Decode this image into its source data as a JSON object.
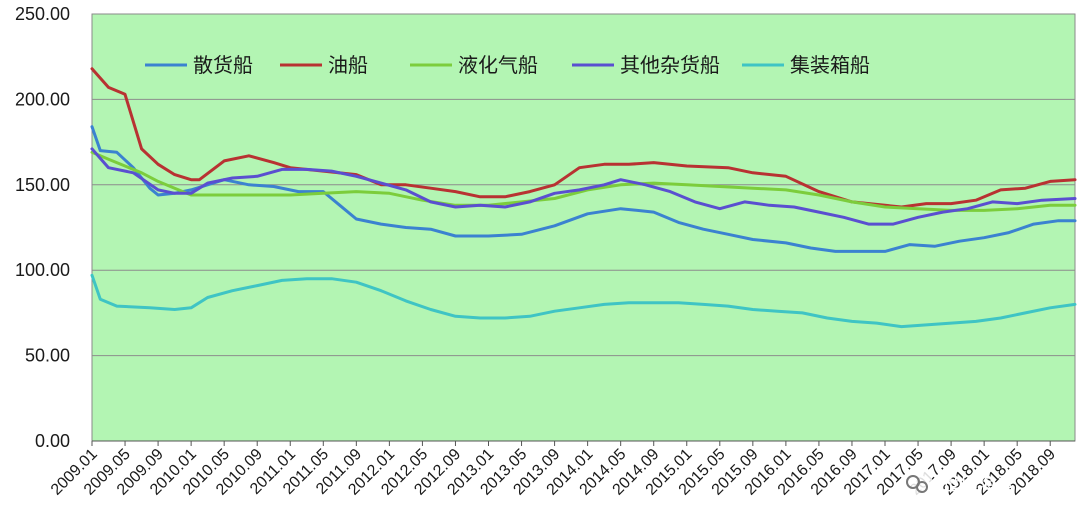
{
  "chart_data": {
    "type": "line",
    "title": "",
    "xlabel": "",
    "ylabel": "",
    "ylim": [
      0,
      250
    ],
    "yticks": [
      "0.00",
      "50.00",
      "100.00",
      "150.00",
      "200.00",
      "250.00"
    ],
    "x_tick_labels": [
      "2009.01",
      "2009.05",
      "2009.09",
      "2010.01",
      "2010.05",
      "2010.09",
      "2011.01",
      "2011.05",
      "2011.09",
      "2012.01",
      "2012.05",
      "2012.09",
      "2013.01",
      "2013.05",
      "2013.09",
      "2014.01",
      "2014.05",
      "2014.09",
      "2015.01",
      "2015.05",
      "2015.09",
      "2016.01",
      "2016.05",
      "2016.09",
      "2017.01",
      "2017.05",
      "2017.09",
      "2018.01",
      "2018.05",
      "2018.09"
    ],
    "legend_position": "top",
    "grid": "horizontal",
    "plot_background": "#b3f5b3",
    "series": [
      {
        "name": "散货船",
        "color": "#3b82d0",
        "points": [
          [
            "2009.01",
            184
          ],
          [
            "2009.02",
            170
          ],
          [
            "2009.04",
            169
          ],
          [
            "2009.06",
            160
          ],
          [
            "2009.08",
            148
          ],
          [
            "2009.09",
            144
          ],
          [
            "2009.11",
            145
          ],
          [
            "2010.01",
            147
          ],
          [
            "2010.03",
            150
          ],
          [
            "2010.05",
            153
          ],
          [
            "2010.08",
            150
          ],
          [
            "2010.11",
            149
          ],
          [
            "2011.02",
            146
          ],
          [
            "2011.05",
            146
          ],
          [
            "2011.07",
            138
          ],
          [
            "2011.09",
            130
          ],
          [
            "2011.12",
            127
          ],
          [
            "2012.03",
            125
          ],
          [
            "2012.06",
            124
          ],
          [
            "2012.09",
            120
          ],
          [
            "2013.01",
            120
          ],
          [
            "2013.05",
            121
          ],
          [
            "2013.09",
            126
          ],
          [
            "2014.01",
            133
          ],
          [
            "2014.05",
            136
          ],
          [
            "2014.09",
            134
          ],
          [
            "2014.12",
            128
          ],
          [
            "2015.03",
            124
          ],
          [
            "2015.06",
            121
          ],
          [
            "2015.09",
            118
          ],
          [
            "2016.01",
            116
          ],
          [
            "2016.04",
            113
          ],
          [
            "2016.07",
            111
          ],
          [
            "2016.10",
            111
          ],
          [
            "2017.01",
            111
          ],
          [
            "2017.04",
            115
          ],
          [
            "2017.07",
            114
          ],
          [
            "2017.10",
            117
          ],
          [
            "2018.01",
            119
          ],
          [
            "2018.04",
            122
          ],
          [
            "2018.07",
            127
          ],
          [
            "2018.10",
            129
          ],
          [
            "2018.12",
            129
          ]
        ]
      },
      {
        "name": "油船",
        "color": "#b83232",
        "points": [
          [
            "2009.01",
            218
          ],
          [
            "2009.03",
            207
          ],
          [
            "2009.05",
            203
          ],
          [
            "2009.07",
            171
          ],
          [
            "2009.09",
            162
          ],
          [
            "2009.11",
            156
          ],
          [
            "2010.01",
            153
          ],
          [
            "2010.02",
            153
          ],
          [
            "2010.05",
            164
          ],
          [
            "2010.08",
            167
          ],
          [
            "2010.11",
            163
          ],
          [
            "2011.01",
            160
          ],
          [
            "2011.05",
            158
          ],
          [
            "2011.09",
            156
          ],
          [
            "2011.12",
            150
          ],
          [
            "2012.03",
            150
          ],
          [
            "2012.06",
            148
          ],
          [
            "2012.09",
            146
          ],
          [
            "2012.12",
            143
          ],
          [
            "2013.03",
            143
          ],
          [
            "2013.06",
            146
          ],
          [
            "2013.09",
            150
          ],
          [
            "2013.12",
            160
          ],
          [
            "2014.03",
            162
          ],
          [
            "2014.06",
            162
          ],
          [
            "2014.09",
            163
          ],
          [
            "2015.01",
            161
          ],
          [
            "2015.06",
            160
          ],
          [
            "2015.09",
            157
          ],
          [
            "2016.01",
            155
          ],
          [
            "2016.05",
            146
          ],
          [
            "2016.09",
            140
          ],
          [
            "2017.01",
            138
          ],
          [
            "2017.03",
            137
          ],
          [
            "2017.06",
            139
          ],
          [
            "2017.09",
            139
          ],
          [
            "2017.12",
            141
          ],
          [
            "2018.03",
            147
          ],
          [
            "2018.06",
            148
          ],
          [
            "2018.09",
            152
          ],
          [
            "2018.12",
            153
          ]
        ]
      },
      {
        "name": "液化气船",
        "color": "#7ccd3c",
        "points": [
          [
            "2009.01",
            169
          ],
          [
            "2009.03",
            165
          ],
          [
            "2009.05",
            161
          ],
          [
            "2009.07",
            157
          ],
          [
            "2009.09",
            152
          ],
          [
            "2009.11",
            148
          ],
          [
            "2010.01",
            144
          ],
          [
            "2010.05",
            144
          ],
          [
            "2010.09",
            144
          ],
          [
            "2011.01",
            144
          ],
          [
            "2011.05",
            145
          ],
          [
            "2011.09",
            146
          ],
          [
            "2012.01",
            145
          ],
          [
            "2012.05",
            141
          ],
          [
            "2012.09",
            138
          ],
          [
            "2013.01",
            138
          ],
          [
            "2013.05",
            140
          ],
          [
            "2013.09",
            142
          ],
          [
            "2014.01",
            147
          ],
          [
            "2014.05",
            150
          ],
          [
            "2014.09",
            151
          ],
          [
            "2015.01",
            150
          ],
          [
            "2015.05",
            149
          ],
          [
            "2015.09",
            148
          ],
          [
            "2016.01",
            147
          ],
          [
            "2016.05",
            144
          ],
          [
            "2016.09",
            140
          ],
          [
            "2017.01",
            137
          ],
          [
            "2017.05",
            136
          ],
          [
            "2017.09",
            135
          ],
          [
            "2018.01",
            135
          ],
          [
            "2018.05",
            136
          ],
          [
            "2018.09",
            138
          ],
          [
            "2018.12",
            138
          ]
        ]
      },
      {
        "name": "其他杂货船",
        "color": "#5a4fd0",
        "points": [
          [
            "2009.01",
            171
          ],
          [
            "2009.03",
            160
          ],
          [
            "2009.06",
            157
          ],
          [
            "2009.09",
            147
          ],
          [
            "2009.11",
            145
          ],
          [
            "2010.01",
            145
          ],
          [
            "2010.03",
            151
          ],
          [
            "2010.06",
            154
          ],
          [
            "2010.09",
            155
          ],
          [
            "2010.12",
            159
          ],
          [
            "2011.03",
            159
          ],
          [
            "2011.06",
            158
          ],
          [
            "2011.09",
            155
          ],
          [
            "2011.12",
            151
          ],
          [
            "2012.03",
            147
          ],
          [
            "2012.06",
            140
          ],
          [
            "2012.09",
            137
          ],
          [
            "2012.12",
            138
          ],
          [
            "2013.03",
            137
          ],
          [
            "2013.06",
            140
          ],
          [
            "2013.09",
            145
          ],
          [
            "2013.12",
            147
          ],
          [
            "2014.03",
            150
          ],
          [
            "2014.05",
            153
          ],
          [
            "2014.08",
            150
          ],
          [
            "2014.11",
            146
          ],
          [
            "2015.02",
            140
          ],
          [
            "2015.05",
            136
          ],
          [
            "2015.08",
            140
          ],
          [
            "2015.11",
            138
          ],
          [
            "2016.02",
            137
          ],
          [
            "2016.05",
            134
          ],
          [
            "2016.08",
            131
          ],
          [
            "2016.11",
            127
          ],
          [
            "2017.02",
            127
          ],
          [
            "2017.05",
            131
          ],
          [
            "2017.08",
            134
          ],
          [
            "2017.11",
            136
          ],
          [
            "2018.02",
            140
          ],
          [
            "2018.05",
            139
          ],
          [
            "2018.08",
            141
          ],
          [
            "2018.12",
            142
          ]
        ]
      },
      {
        "name": "集装箱船",
        "color": "#3fc4c4",
        "points": [
          [
            "2009.01",
            97
          ],
          [
            "2009.02",
            83
          ],
          [
            "2009.04",
            79
          ],
          [
            "2009.08",
            78
          ],
          [
            "2009.11",
            77
          ],
          [
            "2010.01",
            78
          ],
          [
            "2010.03",
            84
          ],
          [
            "2010.06",
            88
          ],
          [
            "2010.09",
            91
          ],
          [
            "2010.12",
            94
          ],
          [
            "2011.03",
            95
          ],
          [
            "2011.06",
            95
          ],
          [
            "2011.09",
            93
          ],
          [
            "2011.12",
            88
          ],
          [
            "2012.03",
            82
          ],
          [
            "2012.06",
            77
          ],
          [
            "2012.09",
            73
          ],
          [
            "2012.12",
            72
          ],
          [
            "2013.03",
            72
          ],
          [
            "2013.06",
            73
          ],
          [
            "2013.09",
            76
          ],
          [
            "2013.12",
            78
          ],
          [
            "2014.03",
            80
          ],
          [
            "2014.06",
            81
          ],
          [
            "2014.09",
            81
          ],
          [
            "2014.12",
            81
          ],
          [
            "2015.03",
            80
          ],
          [
            "2015.06",
            79
          ],
          [
            "2015.09",
            77
          ],
          [
            "2015.12",
            76
          ],
          [
            "2016.03",
            75
          ],
          [
            "2016.06",
            72
          ],
          [
            "2016.09",
            70
          ],
          [
            "2016.12",
            69
          ],
          [
            "2017.03",
            67
          ],
          [
            "2017.06",
            68
          ],
          [
            "2017.09",
            69
          ],
          [
            "2017.12",
            70
          ],
          [
            "2018.03",
            72
          ],
          [
            "2018.06",
            75
          ],
          [
            "2018.09",
            78
          ],
          [
            "2018.12",
            80
          ]
        ]
      }
    ]
  },
  "watermark": {
    "text": "世界海运",
    "icon": "wechat-icon"
  }
}
